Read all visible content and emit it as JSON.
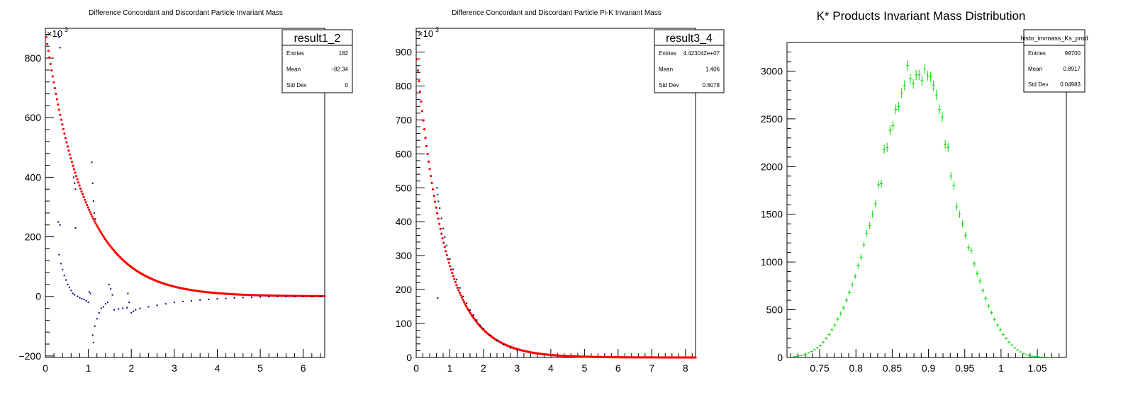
{
  "colors": {
    "fit": "#ff0000",
    "data_points": "#000080",
    "kstar": "#00dd00",
    "axes": "#000000"
  },
  "chart_data": [
    {
      "type": "scatter",
      "title": "Difference Concordant and Discordant Particle Invariant Mass",
      "multiplier": "×10",
      "multiplier_exp": "3",
      "xlim": [
        0,
        6.5
      ],
      "ylim": [
        -205,
        900
      ],
      "x_ticks": [
        0,
        1,
        2,
        3,
        4,
        5,
        6
      ],
      "y_ticks": [
        -200,
        0,
        200,
        400,
        600,
        800
      ],
      "stats": {
        "name": "result1_2",
        "rows": [
          {
            "label": "Entries",
            "value": "182"
          },
          {
            "label": "Mean",
            "value": "−82.34"
          },
          {
            "label": "Std Dev",
            "value": "0"
          }
        ]
      },
      "series": [
        {
          "kind": "fit",
          "amplitude": 890,
          "slope": 1.1,
          "x_range": [
            0.02,
            6.5
          ]
        },
        {
          "kind": "points",
          "points": [
            [
              0.3,
              880
            ],
            [
              0.32,
              870
            ],
            [
              0.34,
              835
            ],
            [
              0.3,
              250
            ],
            [
              0.34,
              240
            ],
            [
              0.32,
              140
            ],
            [
              0.36,
              110
            ],
            [
              0.4,
              90
            ],
            [
              0.44,
              70
            ],
            [
              0.48,
              55
            ],
            [
              0.52,
              40
            ],
            [
              0.56,
              30
            ],
            [
              0.6,
              20
            ],
            [
              0.64,
              10
            ],
            [
              0.68,
              5
            ],
            [
              0.66,
              400
            ],
            [
              0.68,
              380
            ],
            [
              0.7,
              360
            ],
            [
              0.7,
              230
            ],
            [
              0.75,
              0
            ],
            [
              0.8,
              -5
            ],
            [
              0.85,
              -8
            ],
            [
              0.9,
              -10
            ],
            [
              0.95,
              -15
            ],
            [
              1.0,
              -20
            ],
            [
              1.02,
              15
            ],
            [
              1.05,
              10
            ],
            [
              1.08,
              450
            ],
            [
              1.1,
              380
            ],
            [
              1.12,
              320
            ],
            [
              1.14,
              280
            ],
            [
              1.16,
              260
            ],
            [
              1.1,
              -130
            ],
            [
              1.12,
              -155
            ],
            [
              1.15,
              -100
            ],
            [
              1.2,
              -75
            ],
            [
              1.25,
              -55
            ],
            [
              1.3,
              -40
            ],
            [
              1.35,
              -35
            ],
            [
              1.4,
              -25
            ],
            [
              1.45,
              -20
            ],
            [
              1.48,
              40
            ],
            [
              1.52,
              25
            ],
            [
              1.56,
              5
            ],
            [
              1.6,
              -45
            ],
            [
              1.7,
              -42
            ],
            [
              1.8,
              -40
            ],
            [
              1.9,
              -38
            ],
            [
              1.92,
              10
            ],
            [
              1.95,
              -20
            ],
            [
              2.0,
              -55
            ],
            [
              2.05,
              -50
            ],
            [
              2.1,
              -45
            ],
            [
              2.2,
              -40
            ],
            [
              2.4,
              -35
            ],
            [
              2.6,
              -30
            ],
            [
              2.8,
              -25
            ],
            [
              3.0,
              -20
            ],
            [
              3.2,
              -17
            ],
            [
              3.4,
              -15
            ],
            [
              3.6,
              -12
            ],
            [
              3.8,
              -10
            ],
            [
              4.0,
              -8
            ],
            [
              4.2,
              -7
            ],
            [
              4.4,
              -5
            ],
            [
              4.6,
              -4
            ],
            [
              4.8,
              -3
            ],
            [
              5.0,
              -2
            ],
            [
              5.2,
              -1
            ],
            [
              5.4,
              0
            ],
            [
              5.6,
              0
            ],
            [
              5.8,
              0
            ],
            [
              6.0,
              0
            ],
            [
              6.2,
              0
            ],
            [
              6.4,
              0
            ]
          ]
        }
      ]
    },
    {
      "type": "scatter",
      "title": "Difference Concordant and Discordant Particle Pi-K Invariant Mass",
      "multiplier": "×10",
      "multiplier_exp": "3",
      "xlim": [
        0,
        8.3
      ],
      "ylim": [
        0,
        970
      ],
      "x_ticks": [
        0,
        1,
        2,
        3,
        4,
        5,
        6,
        7,
        8
      ],
      "y_ticks": [
        0,
        100,
        200,
        300,
        400,
        500,
        600,
        700,
        800,
        900
      ],
      "stats": {
        "name": "result3_4",
        "rows": [
          {
            "label": "Entries",
            "value": "4.423042e+07"
          },
          {
            "label": "Mean",
            "value": "1.406"
          },
          {
            "label": "Std Dev",
            "value": "0.6078"
          }
        ]
      },
      "series": [
        {
          "kind": "fit",
          "amplitude": 900,
          "slope": 1.2,
          "x_range": [
            0.02,
            8.3
          ]
        },
        {
          "kind": "points",
          "points": [
            [
              0.62,
              500
            ],
            [
              0.64,
              480
            ],
            [
              0.66,
              460
            ],
            [
              0.7,
              440
            ],
            [
              0.75,
              410
            ],
            [
              0.8,
              380
            ],
            [
              0.85,
              355
            ],
            [
              0.9,
              330
            ],
            [
              1.0,
              290
            ],
            [
              1.1,
              260
            ],
            [
              1.2,
              230
            ],
            [
              1.3,
              205
            ],
            [
              1.4,
              180
            ],
            [
              1.5,
              160
            ],
            [
              1.6,
              140
            ],
            [
              1.7,
              125
            ],
            [
              1.8,
              110
            ],
            [
              1.9,
              95
            ],
            [
              2.0,
              85
            ],
            [
              2.2,
              65
            ],
            [
              2.4,
              50
            ],
            [
              2.6,
              38
            ],
            [
              2.8,
              28
            ],
            [
              3.0,
              22
            ],
            [
              0.64,
              175
            ]
          ]
        }
      ]
    },
    {
      "type": "histogram",
      "title": "K* Products Invariant Mass Distribution",
      "xlim": [
        0.705,
        1.09
      ],
      "ylim": [
        0,
        3300
      ],
      "x_ticks": [
        0.75,
        0.8,
        0.85,
        0.9,
        0.95,
        1,
        1.05
      ],
      "y_ticks": [
        0,
        500,
        1000,
        1500,
        2000,
        2500,
        3000
      ],
      "stats": {
        "name": "histo_invmass_Ks_prod",
        "rows": [
          {
            "label": "Entries",
            "value": "99700"
          },
          {
            "label": "Mean",
            "value": "0.8917"
          },
          {
            "label": "Std Dev",
            "value": "0.04983"
          }
        ]
      },
      "series": [
        {
          "kind": "bins",
          "bin_width": 0.004,
          "x": [
            0.715,
            0.719,
            0.723,
            0.727,
            0.731,
            0.735,
            0.739,
            0.743,
            0.747,
            0.751,
            0.755,
            0.759,
            0.763,
            0.767,
            0.771,
            0.775,
            0.779,
            0.783,
            0.787,
            0.791,
            0.795,
            0.799,
            0.803,
            0.807,
            0.811,
            0.815,
            0.819,
            0.823,
            0.827,
            0.831,
            0.835,
            0.839,
            0.843,
            0.847,
            0.851,
            0.855,
            0.859,
            0.863,
            0.867,
            0.871,
            0.875,
            0.879,
            0.883,
            0.887,
            0.891,
            0.895,
            0.899,
            0.903,
            0.907,
            0.911,
            0.915,
            0.919,
            0.923,
            0.927,
            0.931,
            0.935,
            0.939,
            0.943,
            0.947,
            0.951,
            0.955,
            0.959,
            0.963,
            0.967,
            0.971,
            0.975,
            0.979,
            0.983,
            0.987,
            0.991,
            0.995,
            0.999,
            1.003,
            1.007,
            1.011,
            1.015,
            1.019,
            1.023,
            1.027,
            1.031,
            1.035,
            1.039,
            1.043,
            1.047,
            1.051,
            1.055,
            1.059,
            1.063,
            1.067
          ],
          "values": [
            8,
            12,
            18,
            25,
            35,
            48,
            62,
            80,
            100,
            125,
            160,
            200,
            240,
            290,
            340,
            400,
            460,
            520,
            600,
            680,
            760,
            850,
            960,
            1050,
            1180,
            1300,
            1380,
            1500,
            1610,
            1810,
            1820,
            2180,
            2200,
            2380,
            2430,
            2600,
            2630,
            2770,
            2850,
            3060,
            2920,
            2870,
            2960,
            2960,
            2900,
            3020,
            2950,
            2940,
            2850,
            2750,
            2600,
            2520,
            2230,
            2200,
            1900,
            1800,
            1580,
            1500,
            1400,
            1280,
            1150,
            1120,
            980,
            880,
            800,
            700,
            620,
            540,
            470,
            400,
            340,
            290,
            240,
            200,
            160,
            130,
            100,
            78,
            58,
            40,
            28,
            20,
            14,
            10,
            8,
            5,
            4,
            3,
            2
          ]
        }
      ]
    }
  ]
}
